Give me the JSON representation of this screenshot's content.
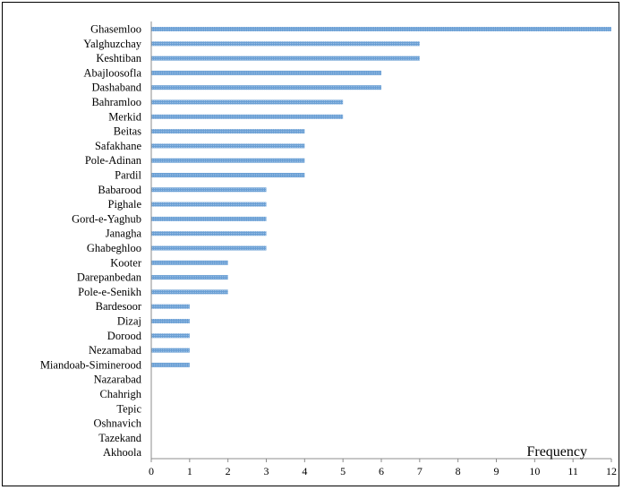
{
  "chart_data": {
    "type": "bar",
    "orientation": "horizontal",
    "categories": [
      "Ghasemloo",
      "Yalghuzchay",
      "Keshtiban",
      "Abajloosofla",
      "Dashaband",
      "Bahramloo",
      "Merkid",
      "Beitas",
      "Safakhane",
      "Pole-Adinan",
      "Pardil",
      "Babarood",
      "Pighale",
      "Gord-e-Yaghub",
      "Janagha",
      "Ghabeghloo",
      "Kooter",
      "Darepanbedan",
      "Pole-e-Senikh",
      "Bardesoor",
      "Dizaj",
      "Dorood",
      "Nezamabad",
      "Miandoab-Siminerood",
      "Nazarabad",
      "Chahrigh",
      "Tepic",
      "Oshnavich",
      "Tazekand",
      "Akhoola"
    ],
    "values": [
      12,
      7,
      7,
      6,
      6,
      5,
      5,
      4,
      4,
      4,
      4,
      3,
      3,
      3,
      3,
      3,
      2,
      2,
      2,
      1,
      1,
      1,
      1,
      1,
      0,
      0,
      0,
      0,
      0,
      0
    ],
    "xlabel": "Frequency",
    "xlim": [
      0,
      12
    ],
    "xticks": [
      "0",
      "1",
      "2",
      "3",
      "4",
      "5",
      "6",
      "7",
      "8",
      "9",
      "10",
      "11",
      "12"
    ],
    "bar_color": "#6a9fd4",
    "grid": false,
    "legend": "none"
  }
}
